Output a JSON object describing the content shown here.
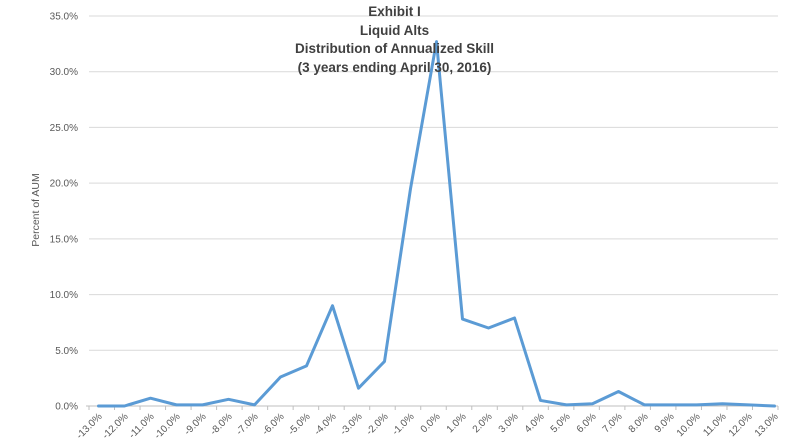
{
  "chart_data": {
    "type": "line",
    "title_lines": [
      "Exhibit I",
      "Liquid Alts",
      "Distribution of Annualized Skill",
      "(3 years ending April 30, 2016)"
    ],
    "ylabel": "Percent of AUM",
    "xlabel": "",
    "categories": [
      "-13.0%",
      "-12.0%",
      "-11.0%",
      "-10.0%",
      "-9.0%",
      "-8.0%",
      "-7.0%",
      "-6.0%",
      "-5.0%",
      "-4.0%",
      "-3.0%",
      "-2.0%",
      "-1.0%",
      "0.0%",
      "1.0%",
      "2.0%",
      "3.0%",
      "4.0%",
      "5.0%",
      "6.0%",
      "7.0%",
      "8.0%",
      "9.0%",
      "10.0%",
      "11.0%",
      "12.0%",
      "13.0%"
    ],
    "values": [
      0.0,
      0.0,
      0.7,
      0.1,
      0.1,
      0.6,
      0.1,
      2.6,
      3.6,
      9.0,
      1.6,
      4.0,
      19.5,
      32.7,
      7.8,
      7.0,
      7.9,
      0.5,
      0.1,
      0.2,
      1.3,
      0.1,
      0.1,
      0.1,
      0.2,
      0.1,
      0.0
    ],
    "ylim": [
      0,
      35
    ],
    "ytick_step": 5,
    "ytick_labels": [
      "0.0%",
      "5.0%",
      "10.0%",
      "15.0%",
      "20.0%",
      "25.0%",
      "30.0%",
      "35.0%"
    ],
    "grid": "horizontal",
    "legend": "none",
    "colors": {
      "line": "#5B9BD5",
      "gridline": "#D9D9D9",
      "axis_line": "#BFBFBF",
      "axis_text": "#595959",
      "title_text": "#404040"
    }
  }
}
